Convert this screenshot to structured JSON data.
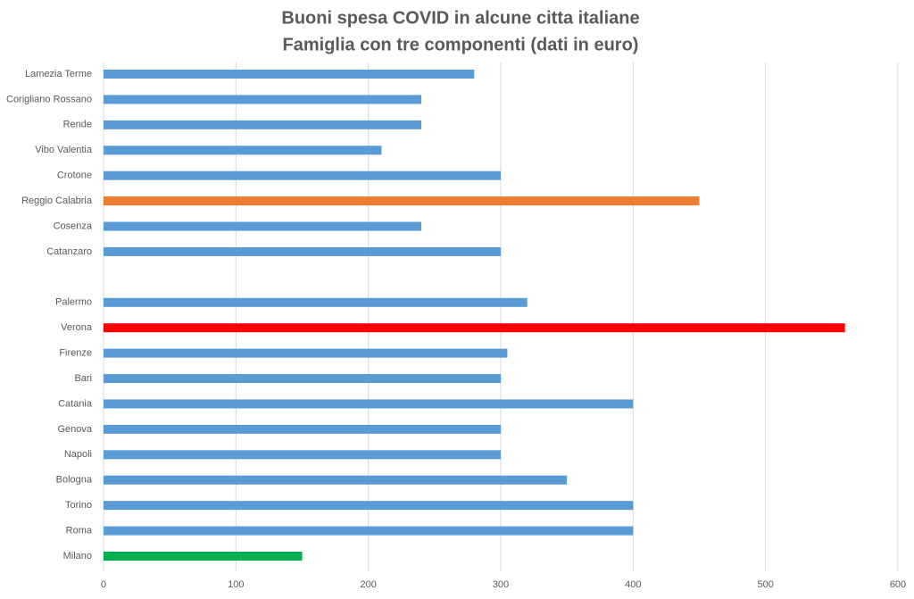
{
  "chart_data": {
    "type": "barh",
    "title": "Buoni spesa COVID in alcune citta italiane",
    "subtitle": "Famiglia con tre componenti (dati in euro)",
    "categories": [
      "Lamezia Terme",
      "Corigliano Rossano",
      "Rende",
      "Vibo Valentia",
      "Crotone",
      "Reggio Calabria",
      "Cosenza",
      "Catanzaro",
      null,
      "Palermo",
      "Verona",
      "Firenze",
      "Bari",
      "Catania",
      "Genova",
      "Napoli",
      "Bologna",
      "Torino",
      "Roma",
      "Milano"
    ],
    "values": [
      280,
      240,
      240,
      210,
      300,
      450,
      240,
      300,
      null,
      320,
      560,
      305,
      300,
      400,
      300,
      300,
      350,
      400,
      400,
      150
    ],
    "colors": [
      "#5b9bd5",
      "#5b9bd5",
      "#5b9bd5",
      "#5b9bd5",
      "#5b9bd5",
      "#ed7d31",
      "#5b9bd5",
      "#5b9bd5",
      null,
      "#5b9bd5",
      "#ff0000",
      "#5b9bd5",
      "#5b9bd5",
      "#5b9bd5",
      "#5b9bd5",
      "#5b9bd5",
      "#5b9bd5",
      "#5b9bd5",
      "#5b9bd5",
      "#00b050"
    ],
    "xlim": [
      0,
      600
    ],
    "xticks": [
      0,
      100,
      200,
      300,
      400,
      500,
      600
    ],
    "grid": true
  }
}
